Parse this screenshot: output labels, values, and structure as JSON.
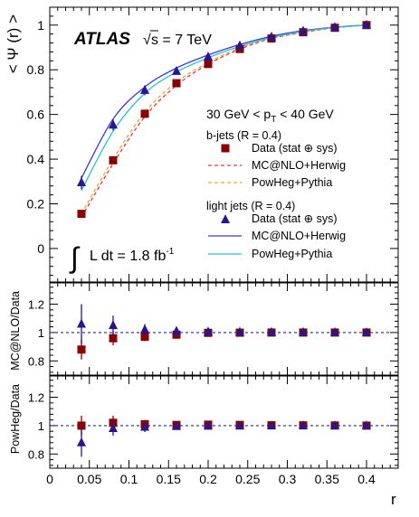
{
  "header": {
    "experiment": "ATLAS",
    "sqrt_s_prefix": "√",
    "sqrt_s_rest": "s = 7 TeV",
    "kin_prefix": "30 GeV < p",
    "kin_sub": "T",
    "kin_suffix": " < 40 GeV",
    "lumi_text": "L dt = 1.8 fb",
    "lumi_exp": "-1"
  },
  "legend": {
    "bjets_header": "b-jets (R = 0.4)",
    "lightjets_header": "light jets (R = 0.4)",
    "entries": [
      {
        "label": "Data (stat ⊕ sys)",
        "kind": "square",
        "color": "#8b0000"
      },
      {
        "label": "MC@NLO+Herwig",
        "kind": "dash",
        "color": "#e8383d"
      },
      {
        "label": "PowHeg+Pythia",
        "kind": "dash",
        "color": "#f4a030"
      },
      {
        "label": "Data (stat ⊕ sys)",
        "kind": "triangle",
        "color": "#2a1490"
      },
      {
        "label": "MC@NLO+Herwig",
        "kind": "solid",
        "color": "#3b3bd6"
      },
      {
        "label": "PowHeg+Pythia",
        "kind": "solid",
        "color": "#25c0d8"
      }
    ]
  },
  "chart_data": [
    {
      "type": "line",
      "panel": "main",
      "ylabel": "< Ψ (r) >",
      "xlim": [
        0,
        0.44
      ],
      "ylim": [
        -0.15,
        1.08
      ],
      "yticks": [
        0,
        0.2,
        0.4,
        0.6,
        0.8,
        1
      ],
      "ytick_labels": [
        "0",
        "0.2",
        "0.4",
        "0.6",
        "0.8",
        "1"
      ],
      "x": [
        0.04,
        0.08,
        0.12,
        0.16,
        0.2,
        0.24,
        0.28,
        0.32,
        0.36,
        0.4
      ],
      "series": [
        {
          "name": "b-jets Data (stat ⊕ sys)",
          "marker": "square",
          "color": "#8b0000",
          "values": [
            0.155,
            0.395,
            0.603,
            0.74,
            0.826,
            0.893,
            0.94,
            0.968,
            0.988,
            1.0
          ],
          "errors": [
            0.01,
            0.015,
            0.015,
            0.015,
            0.012,
            0.01,
            0.008,
            0.006,
            0.004,
            0.0
          ]
        },
        {
          "name": "b-jets MC@NLO+Herwig",
          "style": "dashed",
          "color": "#e8383d",
          "values": [
            0.14,
            0.38,
            0.59,
            0.73,
            0.825,
            0.892,
            0.94,
            0.967,
            0.988,
            1.0
          ]
        },
        {
          "name": "b-jets PowHeg+Pythia",
          "style": "dashed",
          "color": "#f4a030",
          "values": [
            0.155,
            0.4,
            0.61,
            0.745,
            0.832,
            0.898,
            0.942,
            0.969,
            0.989,
            1.0
          ]
        },
        {
          "name": "light jets Data (stat ⊕ sys)",
          "marker": "triangle",
          "color": "#2a1490",
          "values": [
            0.295,
            0.553,
            0.708,
            0.793,
            0.858,
            0.908,
            0.947,
            0.973,
            0.99,
            1.0
          ],
          "errors": [
            0.03,
            0.025,
            0.022,
            0.015,
            0.012,
            0.01,
            0.008,
            0.006,
            0.004,
            0.0
          ]
        },
        {
          "name": "light jets MC@NLO+Herwig",
          "style": "solid",
          "color": "#3b3bd6",
          "values": [
            0.315,
            0.58,
            0.723,
            0.808,
            0.866,
            0.913,
            0.95,
            0.975,
            0.991,
            1.0
          ]
        },
        {
          "name": "light jets PowHeg+Pythia",
          "style": "solid",
          "color": "#25c0d8",
          "values": [
            0.26,
            0.525,
            0.695,
            0.79,
            0.854,
            0.905,
            0.945,
            0.972,
            0.99,
            1.0
          ]
        }
      ]
    },
    {
      "type": "scatter",
      "panel": "ratio1",
      "ylabel": "MC@NLO/Data",
      "ylim": [
        0.7,
        1.35
      ],
      "yticks": [
        0.8,
        1,
        1.2
      ],
      "ytick_labels": [
        "0.8",
        "1",
        "1.2"
      ],
      "reference": 1,
      "x": [
        0.04,
        0.08,
        0.12,
        0.16,
        0.2,
        0.24,
        0.28,
        0.32,
        0.36,
        0.4
      ],
      "series": [
        {
          "name": "b-jets",
          "marker": "square",
          "color": "#8b0000",
          "values": [
            0.88,
            0.96,
            0.97,
            0.985,
            0.998,
            0.999,
            1.0,
            1.0,
            1.0,
            1.0
          ],
          "errors": [
            0.07,
            0.05,
            0.03,
            0.02,
            0.015,
            0.01,
            0.008,
            0.005,
            0.004,
            0.0
          ]
        },
        {
          "name": "light jets",
          "marker": "triangle",
          "color": "#2a1490",
          "values": [
            1.06,
            1.05,
            1.02,
            1.01,
            1.005,
            1.003,
            1.002,
            1.002,
            1.001,
            1.0
          ],
          "errors": [
            0.14,
            0.07,
            0.04,
            0.025,
            0.015,
            0.01,
            0.008,
            0.005,
            0.004,
            0.0
          ]
        }
      ]
    },
    {
      "type": "scatter",
      "panel": "ratio2",
      "ylabel": "PowHeg/Data",
      "xlabel": "r",
      "ylim": [
        0.7,
        1.35
      ],
      "yticks": [
        0.8,
        1,
        1.2
      ],
      "ytick_labels": [
        "0.8",
        "1",
        "1.2"
      ],
      "xticks": [
        0,
        0.05,
        0.1,
        0.15,
        0.2,
        0.25,
        0.3,
        0.35,
        0.4
      ],
      "xtick_labels": [
        "0",
        "0.05",
        "0.1",
        "0.15",
        "0.2",
        "0.25",
        "0.3",
        "0.35",
        "0.4"
      ],
      "reference": 1,
      "x": [
        0.04,
        0.08,
        0.12,
        0.16,
        0.2,
        0.24,
        0.28,
        0.32,
        0.36,
        0.4
      ],
      "series": [
        {
          "name": "b-jets",
          "marker": "square",
          "color": "#8b0000",
          "values": [
            1.0,
            1.02,
            1.01,
            1.005,
            1.007,
            1.005,
            1.003,
            1.002,
            1.001,
            1.0
          ],
          "errors": [
            0.07,
            0.05,
            0.03,
            0.02,
            0.015,
            0.01,
            0.008,
            0.005,
            0.004,
            0.0
          ]
        },
        {
          "name": "light jets",
          "marker": "triangle",
          "color": "#2a1490",
          "values": [
            0.88,
            0.98,
            0.99,
            0.995,
            0.997,
            0.998,
            0.999,
            1.0,
            1.0,
            1.0
          ],
          "errors": [
            0.1,
            0.05,
            0.035,
            0.02,
            0.015,
            0.01,
            0.008,
            0.005,
            0.004,
            0.0
          ]
        }
      ]
    }
  ]
}
